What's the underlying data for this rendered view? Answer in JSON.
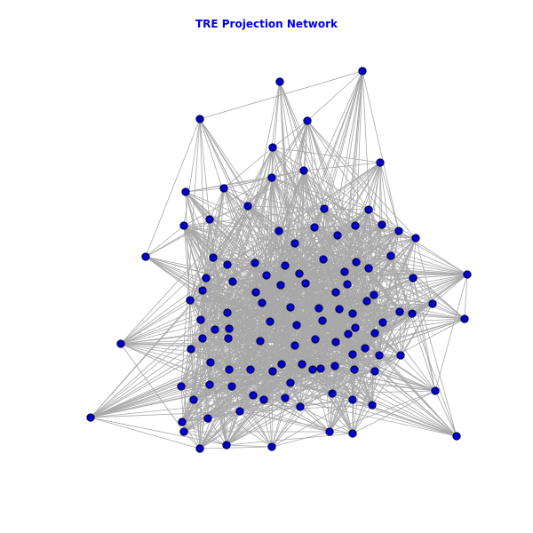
{
  "title": "TRE Projection Network",
  "colors": {
    "title": "#0000ee",
    "node_fill": "#0000cc",
    "node_stroke": "#000033",
    "edge": "#a8a8a8",
    "background": "#ffffff"
  }
}
